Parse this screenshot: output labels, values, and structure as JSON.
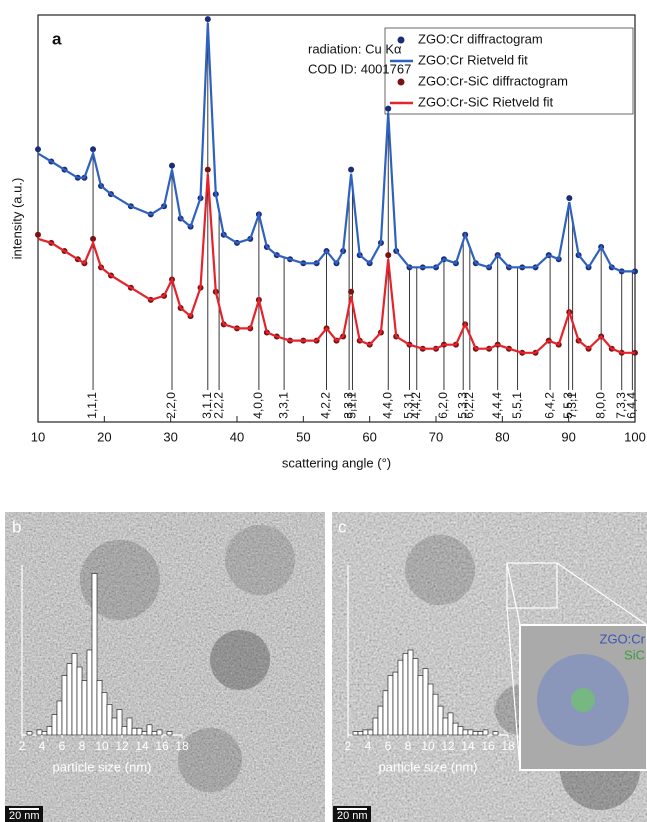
{
  "chart_data": [
    {
      "type": "line",
      "panel_label": "a",
      "annotations": [
        "radiation: Cu Kα",
        "COD ID: 4001767"
      ],
      "xlabel": "scattering angle (°)",
      "ylabel": "intensity (a.u.)",
      "xlim": [
        10,
        100
      ],
      "xticks": [
        10,
        20,
        30,
        40,
        50,
        60,
        70,
        80,
        90,
        100
      ],
      "ylim": [
        0,
        100
      ],
      "legend": "upper right",
      "x": [
        10,
        12,
        14,
        16,
        17,
        18.3,
        19.5,
        21,
        24,
        27,
        29,
        30.2,
        31.5,
        33,
        34.5,
        35.6,
        36.8,
        38,
        40,
        42,
        43.3,
        44.5,
        46,
        48,
        50,
        52,
        53.5,
        55,
        56,
        57.2,
        58.5,
        60,
        61.7,
        62.8,
        64,
        66,
        68,
        70,
        71.2,
        73,
        74.4,
        76,
        78,
        79.3,
        81,
        83,
        85,
        87,
        88.5,
        90.1,
        91.5,
        93,
        94.9,
        96.5,
        98,
        100
      ],
      "series": [
        {
          "name": "ZGO:Cr diffractogram",
          "color": "#1b2d78",
          "mark": "dots",
          "values": [
            67,
            64,
            62,
            60,
            60,
            67,
            58,
            56,
            53,
            51,
            53,
            63,
            50,
            48,
            55,
            99,
            56,
            46,
            44,
            45,
            51,
            43,
            41,
            40,
            39,
            39,
            42,
            39,
            42,
            62,
            41,
            39,
            44,
            77,
            42,
            38,
            38,
            38,
            40,
            39,
            46,
            39,
            38,
            41,
            38,
            38,
            38,
            41,
            40,
            55,
            41,
            38,
            43,
            38,
            37,
            37
          ]
        },
        {
          "name": "ZGO:Cr Rietveld fit",
          "color": "#2f62c0",
          "mark": "line",
          "values": [
            66,
            64,
            62,
            60,
            60,
            66,
            58,
            56,
            53,
            51,
            53,
            62,
            50,
            48,
            55,
            98,
            56,
            46,
            44,
            45,
            51,
            43,
            41,
            40,
            39,
            39,
            42,
            39,
            42,
            61,
            41,
            39,
            44,
            76,
            42,
            38,
            38,
            38,
            40,
            39,
            46,
            39,
            38,
            41,
            38,
            38,
            38,
            41,
            40,
            54,
            41,
            38,
            43,
            38,
            37,
            37
          ]
        },
        {
          "name": "ZGO:Cr-SiC diffractogram",
          "color": "#7a1212",
          "mark": "dots",
          "values": [
            46,
            44,
            42,
            40,
            39,
            45,
            38,
            36,
            33,
            30,
            31,
            35,
            28,
            26,
            33,
            62,
            32,
            24,
            23,
            23,
            30,
            22,
            21,
            20,
            20,
            20,
            23,
            20,
            21,
            32,
            20,
            19,
            22,
            41,
            21,
            19,
            18,
            18,
            19,
            19,
            24,
            18,
            18,
            19,
            18,
            17,
            17,
            20,
            19,
            27,
            20,
            18,
            21,
            18,
            17,
            17
          ]
        },
        {
          "name": "ZGO:Cr-SiC Rietveld fit",
          "color": "#e6222b",
          "mark": "line",
          "values": [
            45,
            44,
            42,
            40,
            39,
            44,
            38,
            36,
            33,
            30,
            31,
            35,
            28,
            26,
            33,
            61,
            32,
            24,
            23,
            23,
            30,
            22,
            21,
            20,
            20,
            20,
            23,
            20,
            21,
            31,
            20,
            19,
            22,
            40,
            21,
            19,
            18,
            18,
            19,
            19,
            24,
            18,
            18,
            19,
            18,
            17,
            17,
            20,
            19,
            27,
            20,
            18,
            21,
            18,
            17,
            17
          ]
        }
      ],
      "reflections": {
        "labels": [
          "1,1,1",
          "2,2,0",
          "3,1,1",
          "2,2,2",
          "4,0,0",
          "3,3,1",
          "4,2,2",
          "3,3,3",
          "5,1,1",
          "4,4,0",
          "5,3,1",
          "4,4,2",
          "6,2,0",
          "5,3,3",
          "6,2,2",
          "4,4,4",
          "5,5,1",
          "6,4,2",
          "5,5,3",
          "7,3,1",
          "8,0,0",
          "7,3,3",
          "6,4,4"
        ],
        "x": [
          18.3,
          30.2,
          35.6,
          37.3,
          43.3,
          47.1,
          53.5,
          56.9,
          57.4,
          62.8,
          66.0,
          67.1,
          71.2,
          74.1,
          75.1,
          79.3,
          82.3,
          87.2,
          90.0,
          90.6,
          94.9,
          98.0,
          99.6
        ]
      }
    },
    {
      "type": "histogram",
      "panel_label": "b",
      "xlabel": "particle size (nm)",
      "scale_bar": "20 nm",
      "xlim": [
        2,
        18
      ],
      "xticks": [
        2,
        4,
        6,
        8,
        10,
        12,
        14,
        16,
        18
      ],
      "ylim": [
        0,
        100
      ],
      "color": "#ffffff",
      "bins": [
        2.5,
        3,
        3.5,
        4,
        4.5,
        5,
        5.5,
        6,
        6.5,
        7,
        7.5,
        8,
        8.5,
        9,
        9.5,
        10,
        10.5,
        11,
        11.5,
        12,
        12.5,
        13,
        13.5,
        14,
        14.5,
        15,
        15.5,
        16,
        16.5,
        17
      ],
      "values": [
        2,
        0,
        3,
        2,
        5,
        12,
        20,
        35,
        42,
        48,
        40,
        32,
        50,
        95,
        32,
        25,
        18,
        10,
        15,
        5,
        10,
        4,
        4,
        2,
        6,
        2,
        3,
        0,
        2
      ]
    },
    {
      "type": "histogram",
      "panel_label": "c",
      "xlabel": "particle size (nm)",
      "scale_bar": "20 nm",
      "inset_labels": [
        "ZGO:Cr",
        "SiC"
      ],
      "xlim": [
        2,
        18
      ],
      "xticks": [
        2,
        4,
        6,
        8,
        10,
        12,
        14,
        16,
        18
      ],
      "ylim": [
        0,
        100
      ],
      "color": "#ffffff",
      "bins": [
        2.5,
        3,
        3.5,
        4,
        4.5,
        5,
        5.5,
        6,
        6.5,
        7,
        7.5,
        8,
        8.5,
        9,
        9.5,
        10,
        10.5,
        11,
        11.5,
        12,
        12.5,
        13,
        13.5,
        14,
        14.5,
        15,
        15.5,
        16,
        16.5,
        17
      ],
      "values": [
        2,
        2,
        3,
        3,
        10,
        17,
        26,
        35,
        37,
        44,
        48,
        50,
        45,
        35,
        39,
        30,
        24,
        17,
        10,
        13,
        7,
        5,
        3,
        3,
        2,
        2,
        3,
        0,
        2
      ]
    }
  ]
}
